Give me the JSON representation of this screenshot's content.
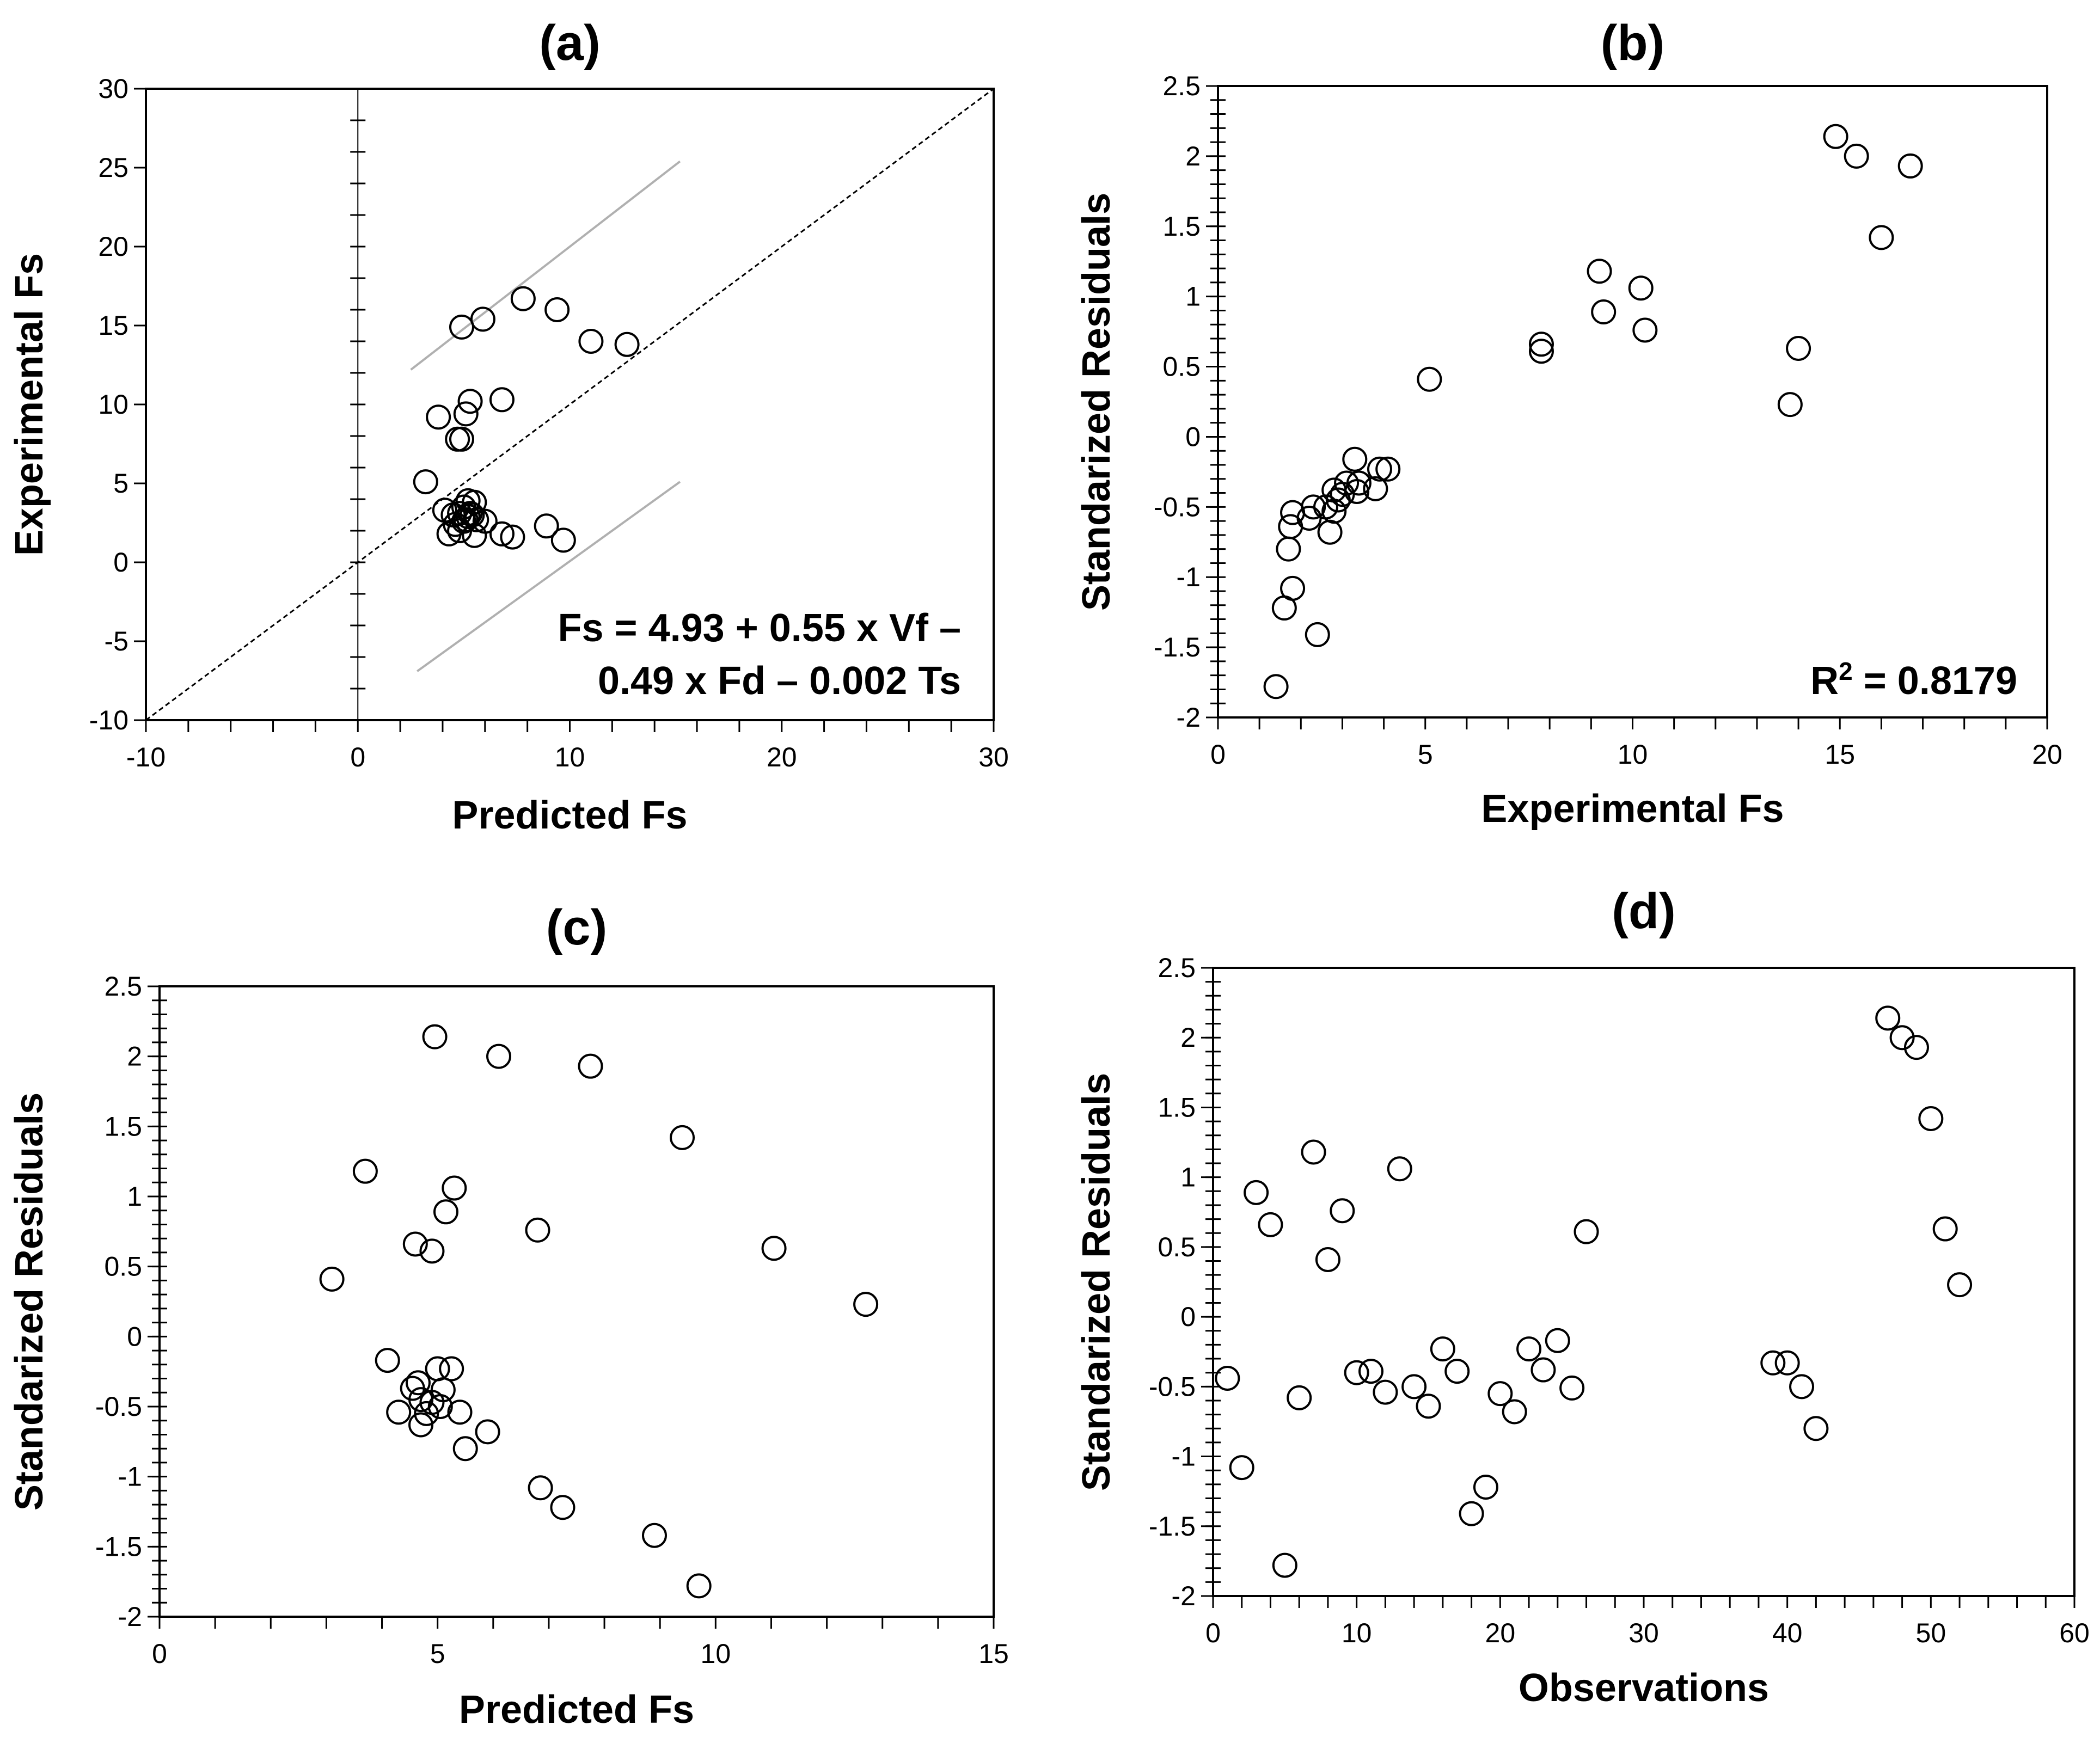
{
  "chart_data": [
    {
      "id": "a",
      "type": "scatter",
      "title": "(a)",
      "xlabel": "Predicted Fs",
      "ylabel": "Experimental Fs",
      "xlim": [
        -10,
        30
      ],
      "ylim": [
        -10,
        30
      ],
      "xticks": [
        -10,
        0,
        10,
        20,
        30
      ],
      "yticks": [
        -10,
        -5,
        0,
        5,
        10,
        15,
        20,
        25,
        30
      ],
      "minor_step": 2,
      "grid": false,
      "annotation": [
        "Fs = 4.93 + 0.55 x Vf –",
        "0.49 x Fd – 0.002 Ts"
      ],
      "lines": [
        {
          "name": "identity",
          "style": "dashed",
          "color": "#000000",
          "x": [
            -10,
            30
          ],
          "y": [
            -10,
            30
          ]
        },
        {
          "name": "upper-bound",
          "style": "solid",
          "color": "#b0b0b0",
          "x": [
            2.5,
            15.2
          ],
          "y": [
            12.2,
            25.4
          ]
        },
        {
          "name": "lower-bound",
          "style": "solid",
          "color": "#b0b0b0",
          "x": [
            2.8,
            15.2
          ],
          "y": [
            -6.9,
            5.1
          ]
        }
      ],
      "points": {
        "x": [
          3.2,
          3.8,
          4.1,
          4.3,
          4.5,
          4.6,
          4.7,
          4.8,
          4.8,
          4.9,
          4.9,
          5.0,
          5.0,
          5.1,
          5.1,
          5.2,
          5.2,
          5.3,
          5.3,
          5.4,
          5.5,
          5.5,
          5.6,
          5.9,
          6.0,
          6.8,
          6.8,
          7.3,
          7.8,
          8.9,
          9.4,
          9.7,
          11.0,
          12.7
        ],
        "y": [
          5.1,
          9.2,
          3.3,
          1.8,
          3.0,
          2.4,
          7.8,
          2.0,
          3.1,
          7.8,
          14.9,
          2.6,
          3.5,
          2.7,
          9.4,
          3.9,
          2.9,
          10.2,
          3.1,
          3.0,
          1.7,
          3.8,
          2.7,
          15.4,
          2.6,
          10.3,
          1.8,
          1.6,
          16.7,
          2.3,
          16.0,
          1.4,
          14.0,
          13.8
        ]
      }
    },
    {
      "id": "b",
      "type": "scatter",
      "title": "(b)",
      "xlabel": "Experimental Fs",
      "ylabel": "Standarized Residuals",
      "xlim": [
        0,
        20
      ],
      "ylim": [
        -2,
        2.5
      ],
      "xticks": [
        0,
        5,
        10,
        15,
        20
      ],
      "yticks": [
        -2,
        -1.5,
        -1,
        -0.5,
        0,
        0.5,
        1,
        1.5,
        2,
        2.5
      ],
      "minor_step": 1,
      "ytick_minor_step": 0.1,
      "grid": false,
      "annotation": [
        "R",
        "2",
        " = 0.8179"
      ],
      "points": {
        "x": [
          1.4,
          1.6,
          1.7,
          1.75,
          1.8,
          1.8,
          2.2,
          2.3,
          2.4,
          2.6,
          2.7,
          2.8,
          2.8,
          2.9,
          3.0,
          3.1,
          3.3,
          3.35,
          3.4,
          3.8,
          3.9,
          4.1,
          5.1,
          7.8,
          7.8,
          9.2,
          9.3,
          10.2,
          10.3,
          13.8,
          14.0,
          14.9,
          15.4,
          16.0,
          16.7
        ],
        "y": [
          -1.78,
          -1.22,
          -0.8,
          -0.64,
          -0.54,
          -1.08,
          -0.58,
          -0.5,
          -1.41,
          -0.5,
          -0.68,
          -0.38,
          -0.53,
          -0.45,
          -0.41,
          -0.33,
          -0.16,
          -0.39,
          -0.33,
          -0.37,
          -0.23,
          -0.23,
          0.41,
          0.66,
          0.61,
          1.18,
          0.89,
          1.06,
          0.76,
          0.23,
          0.63,
          2.14,
          2.0,
          1.42,
          1.93
        ]
      }
    },
    {
      "id": "c",
      "type": "scatter",
      "title": "(c)",
      "xlabel": "Predicted Fs",
      "ylabel": "Standarized Residuals",
      "xlim": [
        0,
        15
      ],
      "ylim": [
        -2,
        2.5
      ],
      "xticks": [
        0,
        5,
        10,
        15
      ],
      "yticks": [
        -2,
        -1.5,
        -1,
        -0.5,
        0,
        0.5,
        1,
        1.5,
        2,
        2.5
      ],
      "minor_step": 1,
      "ytick_minor_step": 0.1,
      "grid": false,
      "points": {
        "x": [
          3.1,
          3.7,
          4.1,
          4.3,
          4.55,
          4.6,
          4.65,
          4.7,
          4.7,
          4.8,
          4.9,
          4.95,
          4.9,
          5.0,
          5.05,
          5.1,
          5.15,
          5.25,
          5.3,
          5.4,
          5.5,
          5.9,
          6.1,
          6.8,
          6.85,
          7.25,
          7.75,
          8.9,
          9.4,
          9.7,
          11.05,
          12.7
        ],
        "y": [
          0.41,
          1.18,
          -0.17,
          -0.54,
          -0.37,
          0.66,
          -0.33,
          -0.45,
          -0.63,
          -0.55,
          0.61,
          2.14,
          -0.47,
          -0.23,
          -0.5,
          -0.38,
          0.89,
          -0.23,
          1.06,
          -0.54,
          -0.8,
          -0.68,
          2.0,
          0.76,
          -1.08,
          -1.22,
          1.93,
          -1.42,
          1.42,
          -1.78,
          0.63,
          0.23
        ]
      }
    },
    {
      "id": "d",
      "type": "scatter",
      "title": "(d)",
      "xlabel": "Observations",
      "ylabel": "Standarized Residuals",
      "xlim": [
        0,
        60
      ],
      "ylim": [
        -2,
        2.5
      ],
      "xticks": [
        0,
        10,
        20,
        30,
        40,
        50,
        60
      ],
      "yticks": [
        -2,
        -1.5,
        -1,
        -0.5,
        0,
        0.5,
        1,
        1.5,
        2,
        2.5
      ],
      "minor_step": 2,
      "ytick_minor_step": 0.1,
      "grid": false,
      "points": {
        "x": [
          1,
          2,
          3,
          4,
          5,
          6,
          7,
          8,
          9,
          10,
          11,
          12,
          13,
          14,
          15,
          16,
          17,
          18,
          19,
          20,
          21,
          22,
          23,
          24,
          25,
          26,
          39,
          40,
          41,
          42,
          47,
          48,
          49,
          50,
          51,
          52
        ],
        "y": [
          -0.44,
          -1.08,
          0.89,
          0.66,
          -1.78,
          -0.58,
          1.18,
          0.41,
          0.76,
          -0.4,
          -0.39,
          -0.54,
          1.06,
          -0.5,
          -0.64,
          -0.23,
          -0.39,
          -1.41,
          -1.22,
          -0.55,
          -0.68,
          -0.23,
          -0.38,
          -0.17,
          -0.51,
          0.61,
          -0.33,
          -0.33,
          -0.5,
          -0.8,
          2.14,
          2.0,
          1.93,
          1.42,
          0.63,
          0.23
        ]
      }
    }
  ]
}
